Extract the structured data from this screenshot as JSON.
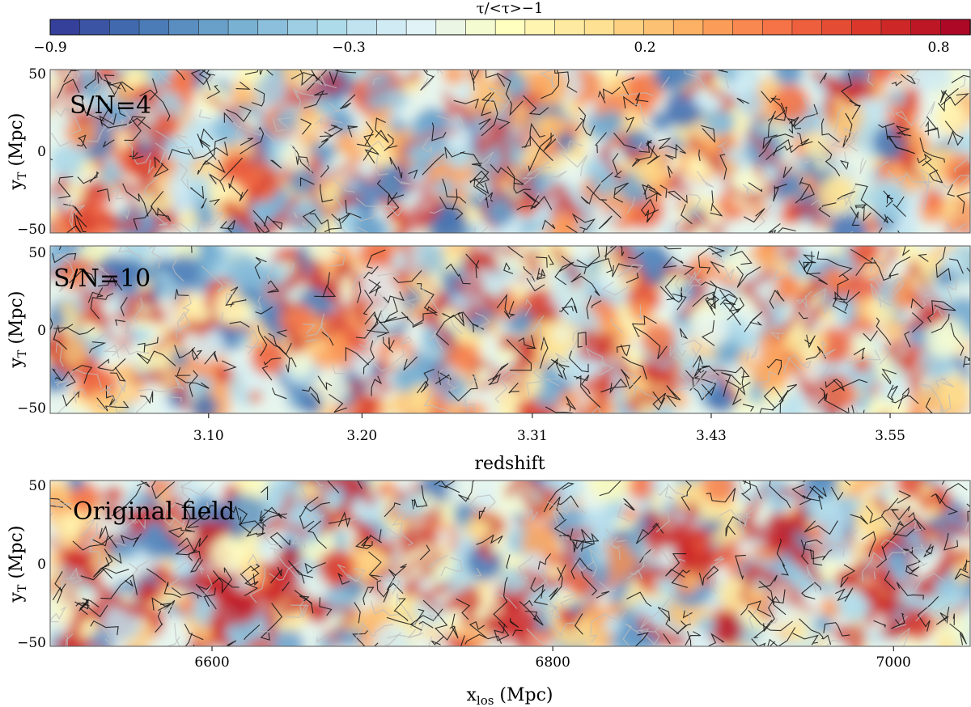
{
  "chart_data": [
    {
      "type": "heatmap",
      "role": "colorbar",
      "title": "τ/<τ>−1",
      "colormap": "RdYlBu_r",
      "range": [
        -0.9,
        0.9
      ],
      "n_steps": 31,
      "tick_values": [
        -0.9,
        -0.3,
        0.2,
        0.8
      ],
      "tick_labels": [
        "−0.9",
        "−0.3",
        "0.2",
        "0.8"
      ],
      "low_color": "#313695",
      "mid_color": "#ffffbf",
      "high_color": "#a50026"
    },
    {
      "type": "heatmap",
      "panel_label": "S/N=4",
      "ylabel": "y_T (Mpc)",
      "ylim": [
        -52,
        52
      ],
      "y_ticks": [
        50,
        0,
        -50
      ],
      "y_tick_labels": [
        "50",
        "0",
        "−50"
      ],
      "xlim": [
        6505,
        7045
      ],
      "overlay": "filament skeleton (black / grey lines)",
      "seed": 4
    },
    {
      "type": "heatmap",
      "panel_label": "S/N=10",
      "ylabel": "y_T (Mpc)",
      "ylim": [
        -52,
        52
      ],
      "y_ticks": [
        50,
        0,
        -50
      ],
      "y_tick_labels": [
        "50",
        "0",
        "−50"
      ],
      "xlabel": "redshift",
      "x_ticks": [
        3.1,
        3.2,
        3.31,
        3.43,
        3.55
      ],
      "x_tick_labels": [
        "3.10",
        "3.20",
        "3.31",
        "3.43",
        "3.55"
      ],
      "x_tick_positions_mpc": [
        6598,
        6688,
        6788,
        6893,
        6998
      ],
      "xlim": [
        6505,
        7045
      ],
      "overlay": "filament skeleton (black / grey lines)",
      "seed": 10
    },
    {
      "type": "heatmap",
      "panel_label": "Original field",
      "ylabel": "y_T (Mpc)",
      "ylim": [
        -52,
        52
      ],
      "y_ticks": [
        50,
        0,
        -50
      ],
      "y_tick_labels": [
        "50",
        "0",
        "−50"
      ],
      "xlabel": "x_los (Mpc)",
      "x_ticks": [
        6600,
        6800,
        7000
      ],
      "x_tick_labels": [
        "6600",
        "6800",
        "7000"
      ],
      "xlim": [
        6505,
        7045
      ],
      "overlay": "filament skeleton (black / grey lines)",
      "seed": 99
    }
  ]
}
